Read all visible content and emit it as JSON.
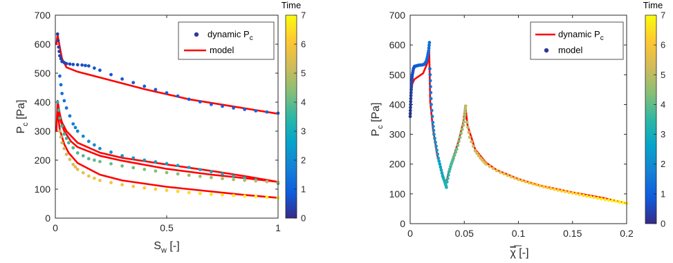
{
  "colormap": [
    "#352a87",
    "#0f5cdd",
    "#1481d6",
    "#06a4ca",
    "#2eb7a4",
    "#87bf77",
    "#d1bb59",
    "#fec832",
    "#f9fb0e"
  ],
  "line_color": "#ff0000",
  "chart_data": [
    {
      "type": "scatter",
      "xlabel_main": "S",
      "xlabel_sub": "w",
      "xlabel_unit": " [-]",
      "ylabel_main": "P",
      "ylabel_sub": "c",
      "ylabel_unit": " [Pa]",
      "xlim": [
        0,
        1
      ],
      "ylim": [
        0,
        700
      ],
      "xticks": [
        "0",
        "0.5",
        "1"
      ],
      "yticks": [
        "0",
        "100",
        "200",
        "300",
        "400",
        "500",
        "600",
        "700"
      ],
      "legend": {
        "position": "top-right",
        "entries": [
          {
            "label": "dynamic P",
            "sub": "c",
            "kind": "marker"
          },
          {
            "label": "model",
            "sub": "",
            "kind": "line"
          }
        ]
      },
      "colorbar": {
        "title": "Time",
        "min": 0,
        "max": 7,
        "ticks": [
          "0",
          "1",
          "2",
          "3",
          "4",
          "5",
          "6",
          "7"
        ]
      },
      "series": [
        {
          "kind": "model",
          "points": [
            [
              0.005,
              600
            ],
            [
              0.01,
              633
            ],
            [
              0.02,
              590
            ],
            [
              0.03,
              550
            ],
            [
              0.05,
              520
            ],
            [
              0.1,
              505
            ],
            [
              0.2,
              485
            ],
            [
              0.4,
              445
            ],
            [
              0.6,
              410
            ],
            [
              0.8,
              385
            ],
            [
              1.0,
              360
            ]
          ]
        },
        {
          "kind": "model",
          "points": [
            [
              0.005,
              300
            ],
            [
              0.01,
              405
            ],
            [
              0.02,
              360
            ],
            [
              0.03,
              330
            ],
            [
              0.05,
              300
            ],
            [
              0.1,
              260
            ],
            [
              0.2,
              226
            ],
            [
              0.3,
              208
            ],
            [
              0.5,
              185
            ],
            [
              0.7,
              163
            ],
            [
              0.85,
              145
            ],
            [
              1.0,
              125
            ]
          ]
        },
        {
          "kind": "model",
          "points": [
            [
              0.01,
              390
            ],
            [
              0.02,
              345
            ],
            [
              0.04,
              300
            ],
            [
              0.07,
              265
            ],
            [
              0.1,
              245
            ],
            [
              0.2,
              215
            ],
            [
              0.3,
              198
            ],
            [
              0.5,
              170
            ],
            [
              0.7,
              150
            ],
            [
              0.85,
              138
            ],
            [
              1.0,
              125
            ]
          ]
        },
        {
          "kind": "model",
          "points": [
            [
              0.01,
              370
            ],
            [
              0.02,
              305
            ],
            [
              0.04,
              255
            ],
            [
              0.06,
              225
            ],
            [
              0.1,
              190
            ],
            [
              0.2,
              150
            ],
            [
              0.3,
              130
            ],
            [
              0.5,
              108
            ],
            [
              0.7,
              92
            ],
            [
              0.85,
              80
            ],
            [
              1.0,
              70
            ]
          ]
        },
        {
          "kind": "dynamic",
          "t_start": 0.3,
          "t_end": 1.2,
          "points": [
            [
              0.01,
              635
            ],
            [
              0.015,
              590
            ],
            [
              0.02,
              560
            ],
            [
              0.03,
              540
            ],
            [
              0.05,
              533
            ],
            [
              0.08,
              530
            ],
            [
              0.12,
              528
            ],
            [
              0.15,
              525
            ],
            [
              0.2,
              510
            ],
            [
              0.3,
              480
            ],
            [
              0.4,
              455
            ],
            [
              0.5,
              432
            ],
            [
              0.6,
              410
            ],
            [
              0.7,
              392
            ],
            [
              0.8,
              380
            ],
            [
              0.9,
              370
            ],
            [
              1.0,
              362
            ]
          ]
        },
        {
          "kind": "dynamic",
          "t_start": 1.2,
          "t_end": 3.3,
          "points": [
            [
              0.02,
              490
            ],
            [
              0.03,
              430
            ],
            [
              0.05,
              380
            ],
            [
              0.08,
              325
            ],
            [
              0.1,
              300
            ],
            [
              0.15,
              265
            ],
            [
              0.2,
              240
            ],
            [
              0.3,
              215
            ],
            [
              0.4,
              200
            ],
            [
              0.5,
              188
            ],
            [
              0.6,
              175
            ],
            [
              0.7,
              160
            ],
            [
              0.8,
              145
            ],
            [
              0.9,
              132
            ],
            [
              1.0,
              120
            ]
          ]
        },
        {
          "kind": "dynamic",
          "t_start": 3.3,
          "t_end": 5.0,
          "points": [
            [
              0.01,
              400
            ],
            [
              0.02,
              345
            ],
            [
              0.04,
              290
            ],
            [
              0.06,
              260
            ],
            [
              0.1,
              225
            ],
            [
              0.15,
              205
            ],
            [
              0.2,
              195
            ],
            [
              0.3,
              180
            ],
            [
              0.4,
              168
            ],
            [
              0.5,
              157
            ],
            [
              0.6,
              148
            ],
            [
              0.7,
              140
            ],
            [
              0.8,
              133
            ],
            [
              0.9,
              128
            ],
            [
              1.0,
              124
            ]
          ]
        },
        {
          "kind": "dynamic",
          "t_start": 5.0,
          "t_end": 7.0,
          "points": [
            [
              0.02,
              300
            ],
            [
              0.03,
              260
            ],
            [
              0.05,
              220
            ],
            [
              0.08,
              185
            ],
            [
              0.1,
              168
            ],
            [
              0.15,
              145
            ],
            [
              0.2,
              130
            ],
            [
              0.3,
              115
            ],
            [
              0.4,
              104
            ],
            [
              0.5,
              96
            ],
            [
              0.6,
              88
            ],
            [
              0.7,
              82
            ],
            [
              0.8,
              78
            ],
            [
              0.9,
              74
            ],
            [
              1.0,
              70
            ]
          ]
        }
      ]
    },
    {
      "type": "scatter",
      "xlabel_main": "χ",
      "xlabel_sub": "",
      "xlabel_unit": " [-]",
      "ylabel_main": "P",
      "ylabel_sub": "c",
      "ylabel_unit": " [Pa]",
      "xlim": [
        0,
        0.2
      ],
      "ylim": [
        0,
        700
      ],
      "xticks": [
        "0",
        "0.05",
        "0.1",
        "0.15",
        "0.2"
      ],
      "yticks": [
        "0",
        "100",
        "200",
        "300",
        "400",
        "500",
        "600",
        "700"
      ],
      "legend": {
        "position": "top-right",
        "entries": [
          {
            "label": "dynamic P",
            "sub": "c",
            "kind": "line"
          },
          {
            "label": "model",
            "sub": "",
            "kind": "marker"
          }
        ]
      },
      "colorbar": {
        "title": "Time",
        "min": 0,
        "max": 7,
        "ticks": [
          "0",
          "1",
          "2",
          "3",
          "4",
          "5",
          "6",
          "7"
        ]
      },
      "series": [
        {
          "kind": "model",
          "points": [
            [
              0.0,
              360
            ],
            [
              0.0005,
              400
            ],
            [
              0.001,
              440
            ],
            [
              0.002,
              470
            ],
            [
              0.004,
              485
            ],
            [
              0.008,
              495
            ],
            [
              0.012,
              505
            ],
            [
              0.016,
              540
            ],
            [
              0.0175,
              600
            ],
            [
              0.0185,
              410
            ],
            [
              0.021,
              320
            ],
            [
              0.025,
              230
            ],
            [
              0.03,
              165
            ],
            [
              0.033,
              130
            ],
            [
              0.035,
              165
            ],
            [
              0.04,
              225
            ],
            [
              0.045,
              280
            ],
            [
              0.049,
              340
            ],
            [
              0.051,
              395
            ],
            [
              0.053,
              330
            ],
            [
              0.06,
              250
            ],
            [
              0.07,
              205
            ],
            [
              0.08,
              180
            ],
            [
              0.1,
              150
            ],
            [
              0.12,
              128
            ],
            [
              0.15,
              105
            ],
            [
              0.18,
              85
            ],
            [
              0.2,
              68
            ]
          ]
        },
        {
          "kind": "dynamic",
          "t_start": 0.3,
          "t_end": 1.3,
          "points": [
            [
              0.0,
              360
            ],
            [
              0.0003,
              390
            ],
            [
              0.0006,
              420
            ],
            [
              0.001,
              450
            ],
            [
              0.0015,
              480
            ],
            [
              0.002,
              500
            ],
            [
              0.003,
              520
            ],
            [
              0.004,
              528
            ],
            [
              0.006,
              530
            ],
            [
              0.008,
              532
            ],
            [
              0.011,
              533
            ],
            [
              0.013,
              535
            ],
            [
              0.015,
              545
            ],
            [
              0.016,
              560
            ],
            [
              0.017,
              580
            ],
            [
              0.0178,
              608
            ]
          ]
        },
        {
          "kind": "dynamic",
          "t_start": 1.3,
          "t_end": 3.3,
          "points": [
            [
              0.0182,
              520
            ],
            [
              0.0188,
              460
            ],
            [
              0.0195,
              400
            ],
            [
              0.021,
              340
            ],
            [
              0.022,
              300
            ],
            [
              0.024,
              260
            ],
            [
              0.026,
              220
            ],
            [
              0.028,
              190
            ],
            [
              0.03,
              160
            ],
            [
              0.032,
              140
            ],
            [
              0.0335,
              122
            ]
          ]
        },
        {
          "kind": "dynamic",
          "t_start": 3.3,
          "t_end": 5.0,
          "points": [
            [
              0.034,
              140
            ],
            [
              0.036,
              175
            ],
            [
              0.038,
              200
            ],
            [
              0.04,
              220
            ],
            [
              0.043,
              250
            ],
            [
              0.046,
              290
            ],
            [
              0.049,
              330
            ],
            [
              0.0505,
              365
            ],
            [
              0.0512,
              395
            ]
          ]
        },
        {
          "kind": "dynamic",
          "t_start": 5.0,
          "t_end": 7.0,
          "points": [
            [
              0.0525,
              340
            ],
            [
              0.055,
              290
            ],
            [
              0.06,
              245
            ],
            [
              0.065,
              220
            ],
            [
              0.07,
              200
            ],
            [
              0.08,
              178
            ],
            [
              0.09,
              162
            ],
            [
              0.1,
              148
            ],
            [
              0.11,
              137
            ],
            [
              0.12,
              127
            ],
            [
              0.13,
              118
            ],
            [
              0.14,
              110
            ],
            [
              0.15,
              103
            ],
            [
              0.16,
              95
            ],
            [
              0.17,
              88
            ],
            [
              0.18,
              81
            ],
            [
              0.19,
              75
            ],
            [
              0.2,
              68
            ]
          ]
        }
      ]
    }
  ]
}
